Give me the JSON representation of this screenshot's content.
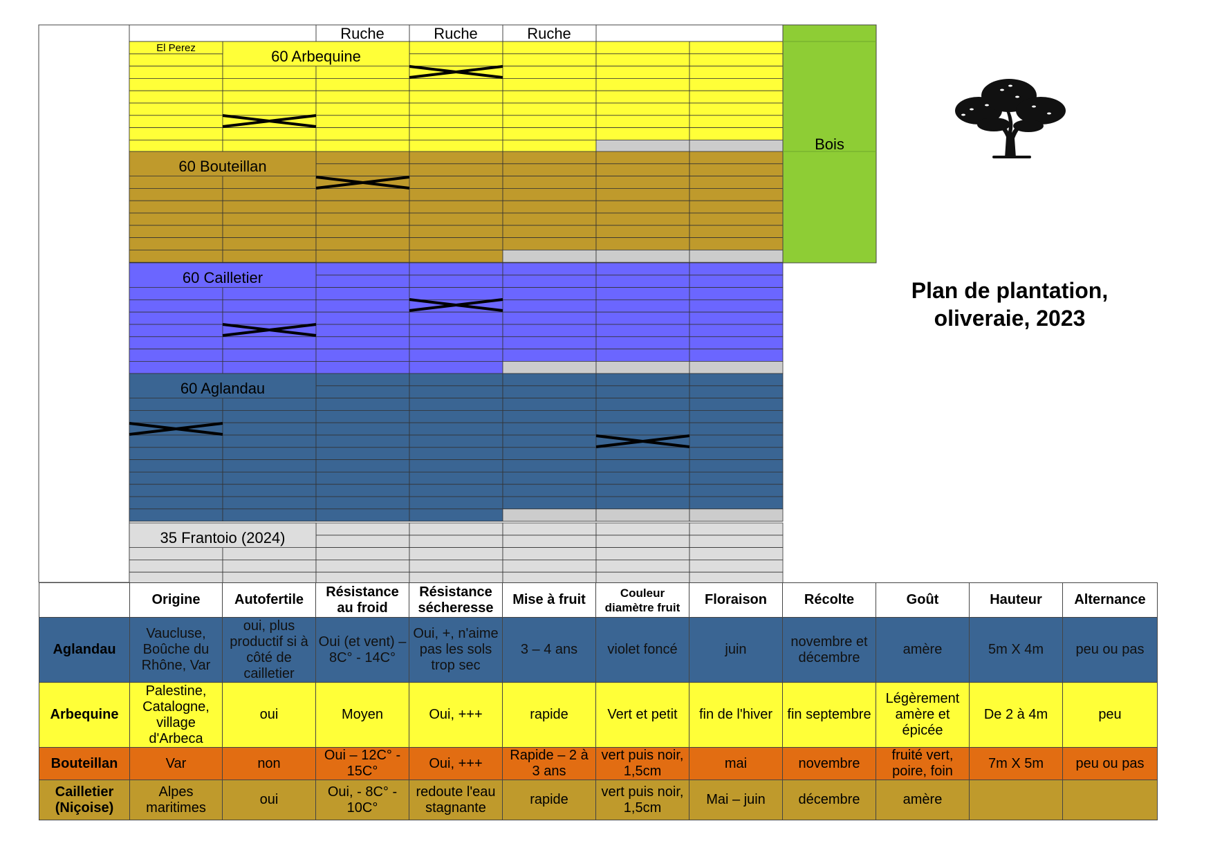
{
  "title": {
    "line1": "Plan de plantation,",
    "line2": "oliveraie, 2023"
  },
  "plan": {
    "top_labels": [
      "Ruche",
      "Ruche",
      "Ruche"
    ],
    "small_label": "El Perez",
    "bois_label": "Bois",
    "blocks": [
      {
        "label": "60 Arbequine",
        "color": "#ffff38"
      },
      {
        "label": "60 Bouteillan",
        "color": "#bf9a2c"
      },
      {
        "label": "60 Cailletier",
        "color": "#6b66ff"
      },
      {
        "label": "60 Aglandau",
        "color": "#3a6593"
      },
      {
        "label": "35 Frantoio (2024)",
        "color": "#dddddd"
      }
    ],
    "bois_color": "#8ecd35",
    "empty_color": "#cccccc"
  },
  "table": {
    "headers": [
      "",
      "Origine",
      "Autofertile",
      "Résistance au froid",
      "Résistance sécheresse",
      "Mise à fruit",
      "Couleur diamètre fruit",
      "Floraison",
      "Récolte",
      "Goût",
      "Hauteur",
      "Alternance"
    ],
    "rows": [
      {
        "variety": "Aglandau",
        "cells": [
          "Vaucluse, Boûche du Rhône, Var",
          "oui, plus productif si à côté de cailletier",
          "Oui (et vent) – 8C° - 14C°",
          "Oui, +, n'aime pas les sols trop sec",
          "3 – 4 ans",
          "violet foncé",
          "juin",
          "novembre et décembre",
          "amère",
          "5m X 4m",
          "peu ou pas"
        ]
      },
      {
        "variety": "Arbequine",
        "cells": [
          "Palestine, Catalogne, village d'Arbeca",
          "oui",
          "Moyen",
          "Oui, +++",
          "rapide",
          "Vert et petit",
          "fin de l'hiver",
          "fin septembre",
          "Légèrement amère et épicée",
          "De 2 à 4m",
          "peu"
        ]
      },
      {
        "variety": "Bouteillan",
        "cells": [
          "Var",
          "non",
          "Oui – 12C° - 15C°",
          "Oui, +++",
          "Rapide – 2 à 3 ans",
          "vert puis noir, 1,5cm",
          "mai",
          "novembre",
          "fruité vert, poire, foin",
          "7m X 5m",
          "peu ou pas"
        ]
      },
      {
        "variety": "Cailletier (Niçoise)",
        "cells": [
          "Alpes maritimes",
          "oui",
          "Oui, - 8C° - 10C°",
          "redoute l'eau stagnante",
          "rapide",
          "vert puis noir, 1,5cm",
          "Mai – juin",
          "décembre",
          "amère",
          "",
          ""
        ]
      }
    ]
  }
}
